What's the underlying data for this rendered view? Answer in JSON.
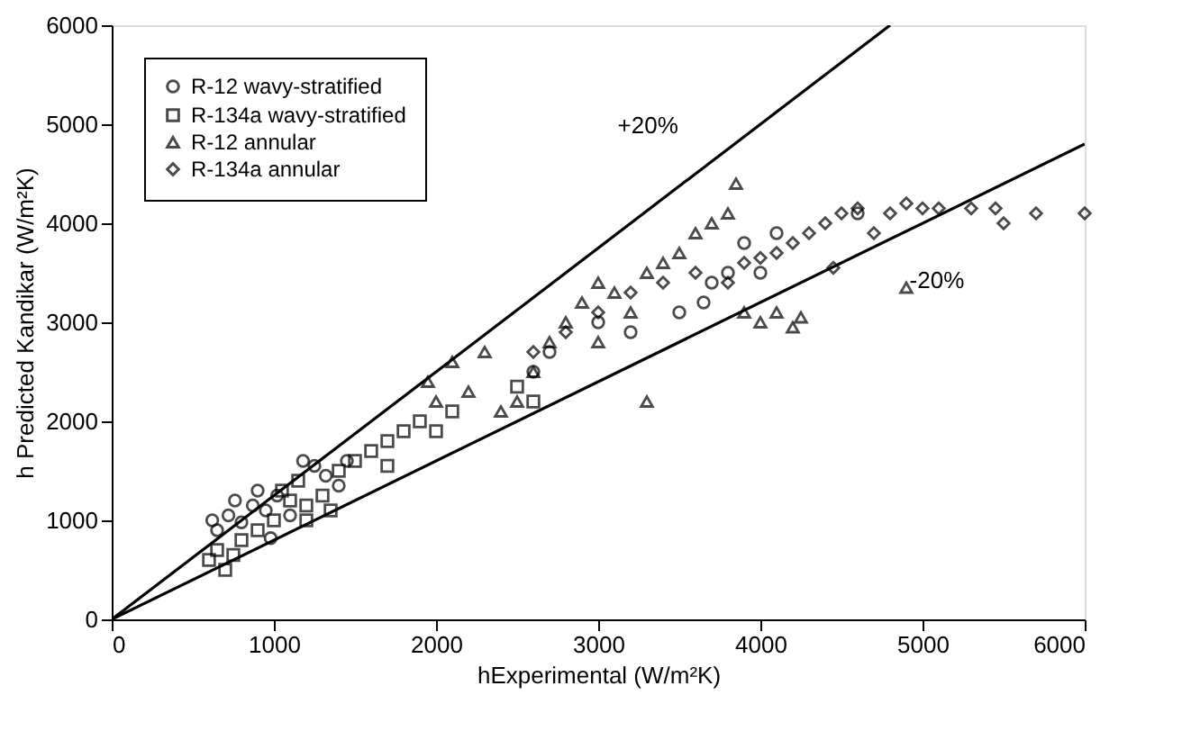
{
  "chart_data": {
    "type": "scatter",
    "xlabel": "hExperimental (W/m²K)",
    "ylabel": "h Predicted Kandikar (W/m²K)",
    "xlim": [
      0,
      6000
    ],
    "ylim": [
      0,
      6000
    ],
    "xticks": [
      0,
      1000,
      2000,
      3000,
      4000,
      5000,
      6000
    ],
    "yticks": [
      0,
      1000,
      2000,
      3000,
      4000,
      5000,
      6000
    ],
    "grid": false,
    "legend": "top left",
    "annotations": [
      "+20%",
      "-20%"
    ],
    "series": [
      {
        "name": "R-12 wavy-stratified",
        "color": "#000000",
        "marker": "circle",
        "x": [
          650,
          720,
          800,
          870,
          950,
          1020,
          1100,
          1250,
          620,
          900,
          1180,
          1320,
          760,
          980,
          1400,
          1450,
          2600,
          2700,
          3000,
          3200,
          3500,
          3700,
          3800,
          3900,
          4000,
          4100,
          3650,
          4600
        ],
        "values": [
          900,
          1050,
          980,
          1150,
          1100,
          1250,
          1050,
          1550,
          1000,
          1300,
          1600,
          1450,
          1200,
          820,
          1350,
          1600,
          2500,
          2700,
          3000,
          2900,
          3100,
          3400,
          3500,
          3800,
          3500,
          3900,
          3200,
          4100
        ]
      },
      {
        "name": "R-134a wavy-stratified",
        "color": "#000000",
        "marker": "square",
        "x": [
          600,
          650,
          700,
          750,
          800,
          900,
          1000,
          1050,
          1100,
          1150,
          1200,
          1300,
          1350,
          1400,
          1500,
          1600,
          1700,
          1800,
          1900,
          2000,
          2100,
          1700,
          2500,
          2600,
          1200
        ],
        "values": [
          600,
          700,
          500,
          650,
          800,
          900,
          1000,
          1300,
          1200,
          1400,
          1150,
          1250,
          1100,
          1500,
          1600,
          1700,
          1800,
          1900,
          2000,
          1900,
          2100,
          1550,
          2350,
          2200,
          1000
        ]
      },
      {
        "name": "R-12 annular",
        "color": "#000000",
        "marker": "triangle",
        "x": [
          1950,
          2000,
          2100,
          2200,
          2300,
          2400,
          2500,
          2600,
          2700,
          2800,
          2900,
          3000,
          3100,
          3200,
          3300,
          3400,
          3500,
          3600,
          3700,
          3800,
          3850,
          3900,
          4000,
          4100,
          4200,
          4250,
          4900,
          3300,
          3000
        ],
        "values": [
          2400,
          2200,
          2600,
          2300,
          2700,
          2100,
          2200,
          2500,
          2800,
          3000,
          3200,
          3400,
          3300,
          3100,
          3500,
          3600,
          3700,
          3900,
          4000,
          4100,
          4400,
          3100,
          3000,
          3100,
          2950,
          3050,
          3350,
          2200,
          2800
        ]
      },
      {
        "name": "R-134a annular",
        "color": "#000000",
        "marker": "diamond",
        "x": [
          2600,
          2800,
          3000,
          3200,
          3400,
          3600,
          3800,
          3900,
          4000,
          4100,
          4200,
          4300,
          4400,
          4500,
          4600,
          4700,
          4800,
          4900,
          5000,
          5100,
          5300,
          5450,
          5500,
          5700,
          6000,
          4450
        ],
        "values": [
          2700,
          2900,
          3100,
          3300,
          3400,
          3500,
          3400,
          3600,
          3650,
          3700,
          3800,
          3900,
          4000,
          4100,
          4150,
          3900,
          4100,
          4200,
          4150,
          4150,
          4150,
          4150,
          4000,
          4100,
          4100,
          3550
        ]
      },
      {
        "type": "line",
        "color": "#000000",
        "marker": "none",
        "x": [
          0,
          4800
        ],
        "values": [
          0,
          6000
        ]
      },
      {
        "type": "line",
        "color": "#000000",
        "marker": "none",
        "x": [
          0,
          6000
        ],
        "values": [
          0,
          4800
        ]
      }
    ]
  }
}
